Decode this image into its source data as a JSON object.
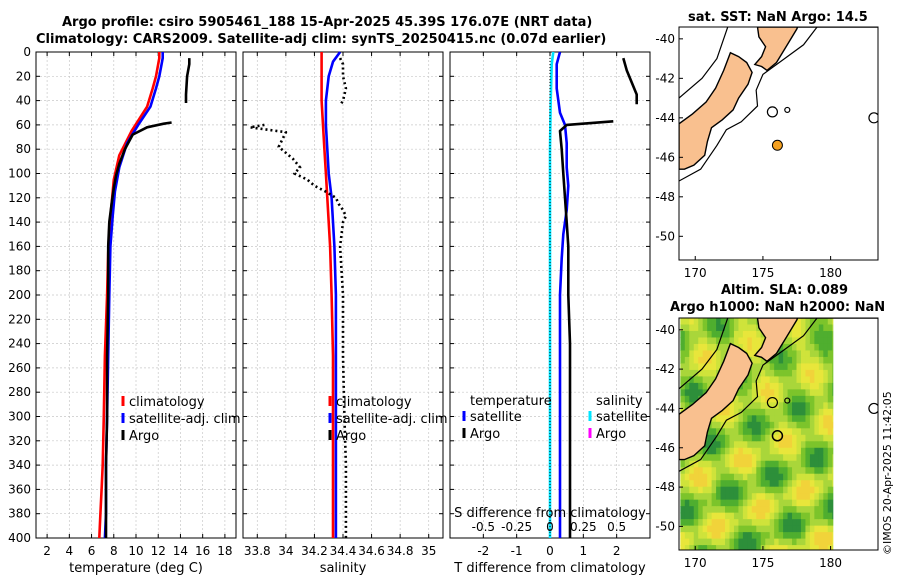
{
  "title": {
    "line1": "Argo profile: csiro 5905461_188 15-Apr-2025 45.39S 176.07E (NRT data)",
    "line2": "Climatology: CARS2009. Satellite-adj clim: synTS_20250415.nc (0.07d earlier)"
  },
  "credit": "©IMOS 20-Apr-2025 11:42:05",
  "colors": {
    "clim": "#ff0000",
    "sat": "#0000ff",
    "argo": "#000000",
    "cyan": "#00e5ff",
    "magenta": "#ff00ff",
    "land": "#f9c08f",
    "dot": "#f4a020"
  },
  "depth_axis": {
    "ticks": [
      0,
      20,
      40,
      60,
      80,
      100,
      120,
      140,
      160,
      180,
      200,
      220,
      240,
      260,
      280,
      300,
      320,
      340,
      360,
      380,
      400
    ]
  },
  "chart_data": [
    {
      "type": "line",
      "id": "temperature",
      "xlabel": "temperature (deg C)",
      "ylabel": "",
      "xlim": [
        1,
        19
      ],
      "ylim": [
        400,
        0
      ],
      "xticks": [
        2,
        4,
        6,
        8,
        10,
        12,
        14,
        16,
        18
      ],
      "legend": [
        "climatology",
        "satellite-adj. clim",
        "Argo"
      ],
      "series": [
        {
          "name": "climatology",
          "color": "#ff0000",
          "style": "solid",
          "x": [
            12.1,
            12.1,
            12.0,
            11.8,
            11.5,
            11.0,
            9.6,
            8.5,
            8.0,
            7.8,
            7.6,
            7.5,
            7.4,
            7.2,
            7.1,
            7.0,
            6.9,
            6.8,
            6.7
          ],
          "y": [
            0,
            5,
            10,
            20,
            30,
            45,
            65,
            85,
            105,
            125,
            145,
            165,
            200,
            250,
            300,
            340,
            360,
            380,
            400
          ]
        },
        {
          "name": "satellite-adj. clim",
          "color": "#0000ff",
          "style": "solid",
          "x": [
            12.4,
            12.4,
            12.3,
            12.1,
            11.8,
            11.3,
            10.2,
            9.2,
            8.5,
            8.1,
            7.9,
            7.7,
            7.6,
            7.5,
            7.4,
            7.3,
            7.3,
            7.3,
            7.2
          ],
          "y": [
            0,
            5,
            10,
            20,
            30,
            45,
            60,
            75,
            95,
            115,
            135,
            160,
            200,
            250,
            300,
            340,
            360,
            380,
            400
          ]
        },
        {
          "name": "Argo",
          "color": "#000000",
          "style": "solid",
          "x": [
            13.2,
            12.5,
            11.0,
            9.7,
            9.0,
            8.5,
            8.2,
            8.0,
            7.8,
            7.6,
            7.5,
            7.5,
            7.4,
            7.4,
            7.3,
            7.3,
            7.3
          ],
          "y": [
            58,
            59,
            62,
            68,
            80,
            92,
            102,
            112,
            125,
            140,
            160,
            200,
            250,
            300,
            340,
            380,
            400
          ]
        },
        {
          "name": "Argo-near-surface",
          "color": "#000000",
          "style": "solid",
          "x": [
            14.8,
            14.8,
            14.6,
            14.5,
            14.5
          ],
          "y": [
            5,
            10,
            20,
            35,
            42
          ]
        }
      ]
    },
    {
      "type": "line",
      "id": "salinity",
      "xlabel": "salinity",
      "xlim": [
        33.7,
        35.1
      ],
      "ylim": [
        400,
        0
      ],
      "xticks": [
        33.8,
        34,
        34.2,
        34.4,
        34.6,
        34.8,
        35
      ],
      "xticklabels": [
        "33.8",
        "34",
        "34.2",
        "34.4",
        "34.6",
        "34.8",
        "35"
      ],
      "legend": [
        "climatology",
        "satellite-adj. clim",
        "Argo"
      ],
      "series": [
        {
          "name": "climatology",
          "color": "#ff0000",
          "style": "solid",
          "x": [
            34.25,
            34.25,
            34.25,
            34.25,
            34.26,
            34.27,
            34.28,
            34.29,
            34.3,
            34.31,
            34.32,
            34.33,
            34.33,
            34.33,
            34.33,
            34.33
          ],
          "y": [
            0,
            5,
            20,
            40,
            60,
            80,
            100,
            120,
            140,
            160,
            200,
            250,
            300,
            340,
            380,
            400
          ]
        },
        {
          "name": "satellite-adj. clim",
          "color": "#0000ff",
          "style": "solid",
          "x": [
            34.38,
            34.33,
            34.3,
            34.28,
            34.28,
            34.29,
            34.3,
            34.32,
            34.33,
            34.34,
            34.35,
            34.35,
            34.35,
            34.35,
            34.35,
            34.35
          ],
          "y": [
            0,
            8,
            20,
            40,
            60,
            80,
            100,
            120,
            140,
            160,
            200,
            250,
            300,
            340,
            380,
            400
          ]
        },
        {
          "name": "Argo-near-surface",
          "color": "#000000",
          "style": "dotted",
          "x": [
            34.38,
            34.4,
            34.4,
            34.42,
            34.4,
            34.38
          ],
          "y": [
            5,
            10,
            20,
            30,
            40,
            44
          ]
        },
        {
          "name": "Argo",
          "color": "#000000",
          "style": "dotted",
          "x": [
            33.85,
            33.75,
            34.0,
            33.95,
            34.05,
            34.1,
            34.06,
            34.15,
            34.2,
            34.28,
            34.35,
            34.37,
            34.4,
            34.42,
            34.4,
            34.38,
            34.4,
            34.4,
            34.41,
            34.42,
            34.42,
            34.42
          ],
          "y": [
            60,
            62,
            66,
            78,
            88,
            95,
            100,
            105,
            110,
            115,
            120,
            125,
            130,
            135,
            140,
            160,
            200,
            250,
            300,
            340,
            380,
            400
          ]
        }
      ]
    },
    {
      "type": "line",
      "id": "differences",
      "xlabel": "T difference from climatology",
      "xlabel_top": "S difference from climatology",
      "xlim": [
        -3,
        3
      ],
      "ylim": [
        400,
        0
      ],
      "xticks": [
        -2,
        -1,
        0,
        1,
        2
      ],
      "xticklabels_bottom": [
        "-2",
        "-1",
        "0",
        "1",
        "2"
      ],
      "xticklabels_top": [
        "-0.5",
        "-0.25",
        "0",
        "0.25",
        "0.5"
      ],
      "legend_groups": [
        {
          "header": "temperature",
          "items": [
            "satellite",
            "Argo"
          ]
        },
        {
          "header": "salinity",
          "items": [
            "satellite",
            "Argo"
          ]
        }
      ],
      "series": [
        {
          "name": "T satellite",
          "color": "#0000ff",
          "style": "solid",
          "x": [
            0.3,
            0.2,
            0.2,
            0.3,
            0.45,
            0.5,
            0.5,
            0.55,
            0.5,
            0.4,
            0.35,
            0.3,
            0.3,
            0.3,
            0.3,
            0.3,
            0.3,
            0.3
          ],
          "y": [
            0,
            10,
            30,
            50,
            60,
            75,
            95,
            110,
            130,
            150,
            170,
            200,
            250,
            300,
            340,
            360,
            380,
            400
          ]
        },
        {
          "name": "T Argo",
          "color": "#000000",
          "style": "solid",
          "x": [
            1.9,
            0.5,
            0.3,
            0.35,
            0.4,
            0.45,
            0.5,
            0.55,
            0.55,
            0.6,
            0.6,
            0.6,
            0.6,
            0.6,
            0.6
          ],
          "y": [
            57,
            60,
            65,
            80,
            100,
            120,
            140,
            160,
            200,
            240,
            280,
            320,
            360,
            380,
            400
          ]
        },
        {
          "name": "T Argo-near-surface",
          "color": "#000000",
          "style": "solid",
          "x": [
            2.2,
            2.3,
            2.6,
            2.6
          ],
          "y": [
            5,
            15,
            35,
            43
          ]
        },
        {
          "name": "S satellite",
          "color": "#00e5ff",
          "style": "solid",
          "x": [
            0.1,
            0.05,
            0.02,
            0.0,
            0.0,
            0.0,
            0.0,
            0.0,
            0.0,
            0.0,
            0.0
          ],
          "y": [
            0,
            10,
            40,
            80,
            120,
            160,
            200,
            250,
            300,
            350,
            400
          ]
        },
        {
          "name": "zero",
          "color": "#000000",
          "style": "dotted",
          "x": [
            0,
            0
          ],
          "y": [
            0,
            400
          ]
        }
      ]
    },
    {
      "type": "map",
      "id": "sst-map",
      "title": "sat. SST: NaN Argo: 14.5",
      "xticks": [
        170,
        175,
        180
      ],
      "yticks": [
        -40,
        -42,
        -44,
        -46,
        -48,
        -50
      ],
      "xlim": [
        168.8,
        183.5
      ],
      "ylim": [
        -51.2,
        -39.4
      ],
      "profile": {
        "lon": 176.07,
        "lat": -45.39
      }
    },
    {
      "type": "map",
      "id": "sla-map",
      "title_line1": "Altim. SLA: 0.089",
      "title_line2": "Argo h1000: NaN h2000: NaN",
      "xticks": [
        170,
        175,
        180
      ],
      "yticks": [
        -40,
        -42,
        -44,
        -46,
        -48,
        -50
      ],
      "xlim": [
        168.8,
        183.5
      ],
      "ylim": [
        -51.2,
        -39.4
      ],
      "profile": {
        "lon": 176.07,
        "lat": -45.39
      }
    }
  ]
}
